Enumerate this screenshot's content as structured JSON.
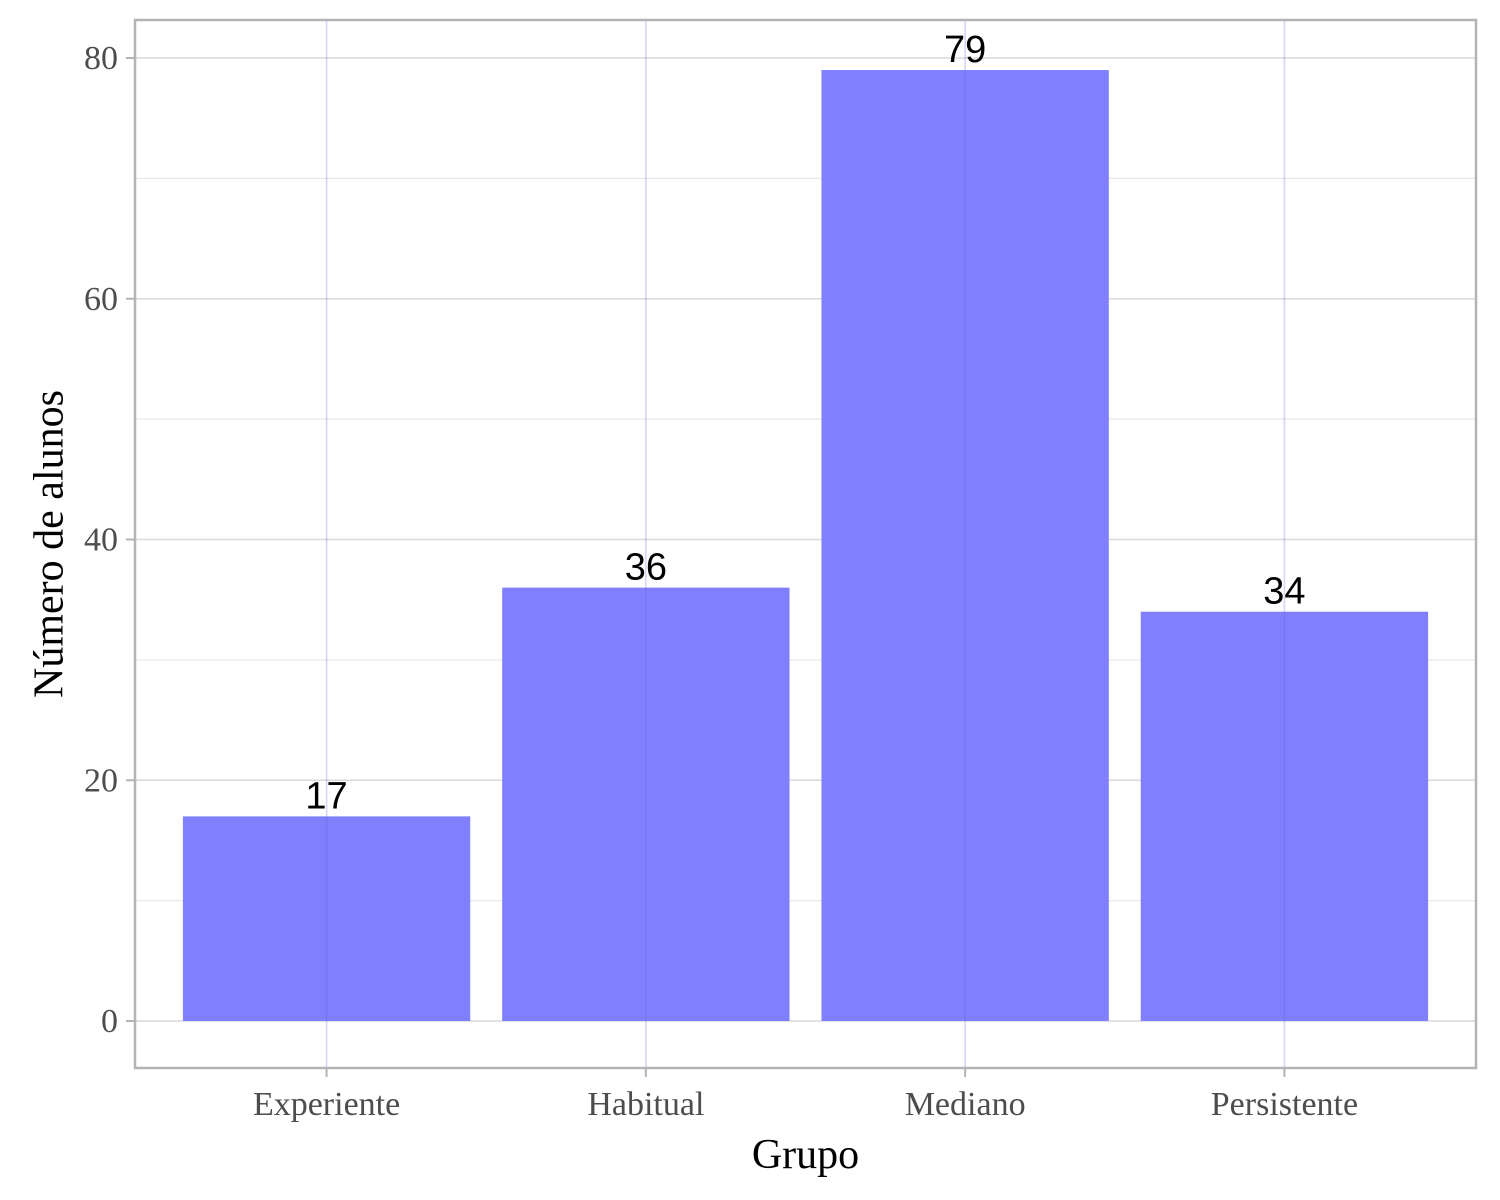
{
  "chart_data": {
    "type": "bar",
    "categories": [
      "Experiente",
      "Habitual",
      "Mediano",
      "Persistente"
    ],
    "values": [
      17,
      36,
      79,
      34
    ],
    "data_labels": [
      "17",
      "36",
      "79",
      "34"
    ],
    "title": "",
    "xlabel": "Grupo",
    "ylabel": "Número de alunos",
    "ylim": [
      -3.9,
      83
    ],
    "yticks": [
      0,
      20,
      40,
      60,
      80
    ],
    "ytick_labels": [
      "0",
      "20",
      "40",
      "60",
      "80"
    ],
    "minor_yticks": [
      10,
      30,
      50,
      70
    ],
    "grid": true,
    "legend": "none",
    "bar_color": "#8080ff"
  }
}
